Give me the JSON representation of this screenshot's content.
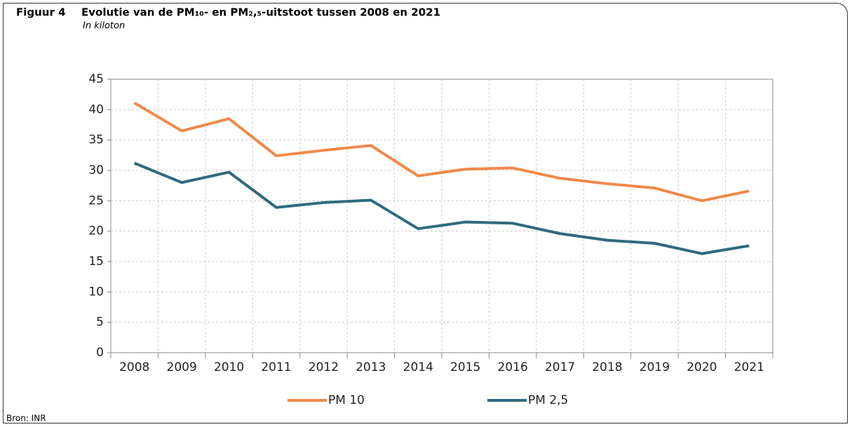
{
  "chart_data": {
    "type": "line",
    "figure_label": "Figuur 4",
    "title": "Evolutie van de PM₁₀- en PM₂,₅-uitstoot tussen 2008 en 2021",
    "subtitle": "In kiloton",
    "source": "Bron: INR",
    "categories": [
      "2008",
      "2009",
      "2010",
      "2011",
      "2012",
      "2013",
      "2014",
      "2015",
      "2016",
      "2017",
      "2018",
      "2019",
      "2020",
      "2021"
    ],
    "series": [
      {
        "name": "PM 10",
        "color": "#f0894a",
        "values": [
          41.1,
          36.5,
          38.5,
          32.4,
          33.3,
          34.1,
          29.1,
          30.2,
          30.4,
          28.7,
          27.8,
          27.1,
          25.0,
          26.6
        ]
      },
      {
        "name": "PM 2,5",
        "color": "#2f6a7f",
        "values": [
          31.2,
          28.0,
          29.7,
          23.9,
          24.7,
          25.1,
          20.4,
          21.5,
          21.3,
          19.6,
          18.5,
          18.0,
          16.3,
          17.6
        ]
      }
    ],
    "ylim": [
      0,
      45
    ],
    "yticks": [
      0,
      5,
      10,
      15,
      20,
      25,
      30,
      35,
      40,
      45
    ],
    "grid": true,
    "legend": "bottom"
  }
}
